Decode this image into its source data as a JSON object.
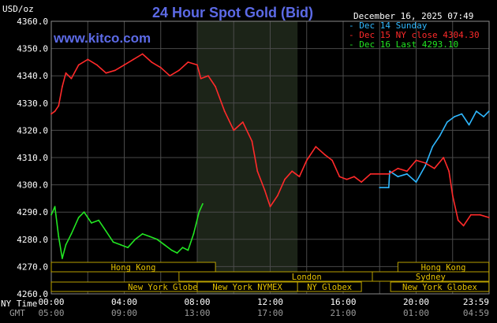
{
  "header": {
    "title": "24 Hour Spot Gold (Bid)",
    "site": "www.kitco.com",
    "timestamp": "December 16, 2025 07:49",
    "unit_label": "USD/oz"
  },
  "legend": [
    {
      "label": "Dec 14 Sunday",
      "color": "#2fb8ff"
    },
    {
      "label": "Dec 15 NY close 4304.30",
      "color": "#ff2a2a"
    },
    {
      "label": "Dec 16 Last 4293.10",
      "color": "#22e622"
    }
  ],
  "time_axis": {
    "row1_label": "NY Time",
    "row2_label": "GMT",
    "ny_ticks": [
      "00:00",
      "04:00",
      "08:00",
      "12:00",
      "16:00",
      "20:00",
      "23:59"
    ],
    "gmt_ticks": [
      "05:00",
      "09:00",
      "13:00",
      "17:00",
      "21:00",
      "01:00",
      "04:59"
    ]
  },
  "sessions": [
    {
      "label": "Hong Kong",
      "start": 0,
      "end": 9
    },
    {
      "label": "London",
      "start": 7,
      "end": 21
    },
    {
      "label": "New York Globex",
      "start": 0,
      "end": 12.5
    },
    {
      "label": "New York NYMEX",
      "start": 8,
      "end": 13.5
    },
    {
      "label": "NY Globex",
      "start": 13.5,
      "end": 17
    },
    {
      "label": "Hong Kong",
      "start": 19,
      "end": 23.99
    },
    {
      "label": "Sydney",
      "start": 17.6,
      "end": 23.99
    },
    {
      "label": "New York Globex",
      "start": 18.6,
      "end": 23.99
    }
  ],
  "chart_data": {
    "type": "line",
    "title": "24 Hour Spot Gold (Bid)",
    "ylabel": "USD/oz",
    "xlabel": "NY Time",
    "x_units": "hours (NY time)",
    "xlim": [
      0,
      24
    ],
    "ylim": [
      4260,
      4360
    ],
    "yticks": [
      4260,
      4270,
      4280,
      4290,
      4300,
      4310,
      4320,
      4330,
      4340,
      4350,
      4360
    ],
    "grid": true,
    "highlight_region": {
      "start": 8,
      "end": 13.5
    },
    "series": [
      {
        "name": "Dec 14 Sunday",
        "color": "#2fb8ff",
        "x": [
          18.0,
          18.5,
          18.55,
          19.0,
          19.5,
          20.0,
          20.5,
          20.9,
          21.3,
          21.7,
          22.1,
          22.5,
          22.9,
          23.3,
          23.7,
          23.99
        ],
        "y": [
          4299,
          4299,
          4305,
          4303,
          4304,
          4301,
          4307,
          4314,
          4318,
          4323,
          4325,
          4326,
          4322,
          4327,
          4325,
          4327
        ]
      },
      {
        "name": "Dec 15 NY close 4304.30",
        "color": "#ff2a2a",
        "x": [
          0.0,
          0.2,
          0.4,
          0.6,
          0.8,
          1.1,
          1.5,
          2.0,
          2.5,
          3.0,
          3.5,
          4.0,
          4.5,
          5.0,
          5.5,
          6.0,
          6.5,
          7.0,
          7.5,
          8.0,
          8.2,
          8.6,
          9.0,
          9.5,
          10.0,
          10.5,
          11.0,
          11.3,
          11.7,
          12.0,
          12.4,
          12.8,
          13.2,
          13.6,
          14.0,
          14.5,
          15.0,
          15.4,
          15.8,
          16.2,
          16.6,
          17.0,
          17.5,
          18.0,
          18.5,
          19.0,
          19.5,
          20.0,
          20.5,
          21.0,
          21.5,
          21.8,
          22.0,
          22.3,
          22.6,
          23.0,
          23.5,
          23.99
        ],
        "y": [
          4326,
          4327,
          4329,
          4336,
          4341,
          4339,
          4344,
          4346,
          4344,
          4341,
          4342,
          4344,
          4346,
          4348,
          4345,
          4343,
          4340,
          4342,
          4345,
          4344,
          4339,
          4340,
          4336,
          4327,
          4320,
          4323,
          4316,
          4305,
          4298,
          4292,
          4296,
          4302,
          4305,
          4303,
          4309,
          4314,
          4311,
          4309,
          4303,
          4302,
          4303,
          4301,
          4304,
          4304,
          4304,
          4306,
          4305,
          4309,
          4308,
          4306,
          4310,
          4305,
          4296,
          4287,
          4285,
          4289,
          4289,
          4288
        ]
      },
      {
        "name": "Dec 16 Last 4293.10",
        "color": "#22e622",
        "x": [
          0.0,
          0.2,
          0.4,
          0.6,
          0.8,
          1.1,
          1.5,
          1.8,
          2.2,
          2.6,
          3.0,
          3.4,
          3.8,
          4.2,
          4.6,
          5.0,
          5.4,
          5.8,
          6.2,
          6.6,
          6.9,
          7.2,
          7.5,
          7.8,
          8.1,
          8.3
        ],
        "y": [
          4289,
          4292,
          4281,
          4273,
          4278,
          4282,
          4288,
          4290,
          4286,
          4287,
          4283,
          4279,
          4278,
          4277,
          4280,
          4282,
          4281,
          4280,
          4278,
          4276,
          4275,
          4277,
          4276,
          4282,
          4290,
          4293
        ]
      }
    ]
  }
}
